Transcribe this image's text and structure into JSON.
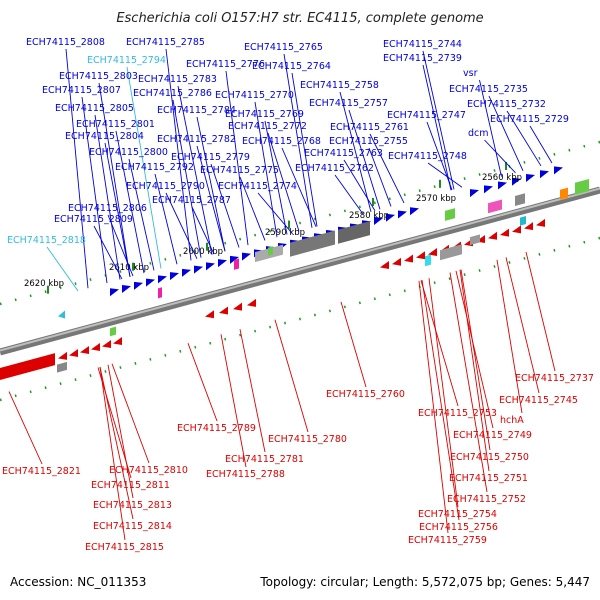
{
  "title": "Escherichia coli O157:H7 str. EC4115, complete genome",
  "footer": {
    "accession": "Accession: NC_011353",
    "summary": "Topology: circular; Length: 5,572,075 bp; Genes: 5,447"
  },
  "colors": {
    "forward": "#0000dd",
    "reverse": "#dd0000",
    "highlight": "#33bbdd",
    "backbone": "#777777"
  },
  "ticks": [
    "2560 kbp",
    "2570 kbp",
    "2580 kbp",
    "2590 kbp",
    "2600 kbp",
    "2610 kbp",
    "2620 kbp"
  ],
  "top_labels": [
    {
      "text": "ECH74115_2808",
      "color": "forward"
    },
    {
      "text": "ECH74115_2785",
      "color": "forward"
    },
    {
      "text": "ECH74115_2765",
      "color": "forward"
    },
    {
      "text": "ECH74115_2744",
      "color": "forward"
    },
    {
      "text": "ECH74115_2794",
      "color": "highlight"
    },
    {
      "text": "ECH74115_2776",
      "color": "forward"
    },
    {
      "text": "ECH74115_2764",
      "color": "forward"
    },
    {
      "text": "ECH74115_2739",
      "color": "forward"
    },
    {
      "text": "ECH74115_2803",
      "color": "forward"
    },
    {
      "text": "ECH74115_2783",
      "color": "forward"
    },
    {
      "text": "vsr",
      "color": "forward"
    },
    {
      "text": "ECH74115_2807",
      "color": "forward"
    },
    {
      "text": "ECH74115_2786",
      "color": "forward"
    },
    {
      "text": "ECH74115_2758",
      "color": "forward"
    },
    {
      "text": "ECH74115_2735",
      "color": "forward"
    },
    {
      "text": "ECH74115_2770",
      "color": "forward"
    },
    {
      "text": "ECH74115_2805",
      "color": "forward"
    },
    {
      "text": "ECH74115_2784",
      "color": "forward"
    },
    {
      "text": "ECH74115_2757",
      "color": "forward"
    },
    {
      "text": "ECH74115_2732",
      "color": "forward"
    },
    {
      "text": "ECH74115_2769",
      "color": "forward"
    },
    {
      "text": "ECH74115_2747",
      "color": "forward"
    },
    {
      "text": "ECH74115_2801",
      "color": "forward"
    },
    {
      "text": "ECH74115_2772",
      "color": "forward"
    },
    {
      "text": "ECH74115_2761",
      "color": "forward"
    },
    {
      "text": "ECH74115_2729",
      "color": "forward"
    },
    {
      "text": "ECH74115_2804",
      "color": "forward"
    },
    {
      "text": "ECH74115_2782",
      "color": "forward"
    },
    {
      "text": "dcm",
      "color": "forward"
    },
    {
      "text": "ECH74115_2768",
      "color": "forward"
    },
    {
      "text": "ECH74115_2755",
      "color": "forward"
    },
    {
      "text": "ECH74115_2800",
      "color": "forward"
    },
    {
      "text": "ECH74115_2779",
      "color": "forward"
    },
    {
      "text": "ECH74115_2763",
      "color": "forward"
    },
    {
      "text": "ECH74115_2748",
      "color": "forward"
    },
    {
      "text": "ECH74115_2792",
      "color": "forward"
    },
    {
      "text": "ECH74115_2775",
      "color": "forward"
    },
    {
      "text": "ECH74115_2762",
      "color": "forward"
    },
    {
      "text": "ECH74115_2790",
      "color": "forward"
    },
    {
      "text": "ECH74115_2774",
      "color": "forward"
    },
    {
      "text": "ECH74115_2787",
      "color": "forward"
    },
    {
      "text": "ECH74115_2806",
      "color": "forward"
    },
    {
      "text": "ECH74115_2809",
      "color": "forward"
    },
    {
      "text": "ECH74115_2818",
      "color": "highlight"
    }
  ],
  "bottom_labels": [
    {
      "text": "ECH74115_2760",
      "color": "reverse"
    },
    {
      "text": "ECH74115_2737",
      "color": "reverse"
    },
    {
      "text": "ECH74115_2745",
      "color": "reverse"
    },
    {
      "text": "ECH74115_2753",
      "color": "reverse"
    },
    {
      "text": "hchA",
      "color": "reverse"
    },
    {
      "text": "ECH74115_2789",
      "color": "reverse"
    },
    {
      "text": "ECH74115_2780",
      "color": "reverse"
    },
    {
      "text": "ECH74115_2749",
      "color": "reverse"
    },
    {
      "text": "ECH74115_2781",
      "color": "reverse"
    },
    {
      "text": "ECH74115_2750",
      "color": "reverse"
    },
    {
      "text": "ECH74115_2821",
      "color": "reverse"
    },
    {
      "text": "ECH74115_2810",
      "color": "reverse"
    },
    {
      "text": "ECH74115_2788",
      "color": "reverse"
    },
    {
      "text": "ECH74115_2751",
      "color": "reverse"
    },
    {
      "text": "ECH74115_2811",
      "color": "reverse"
    },
    {
      "text": "ECH74115_2752",
      "color": "reverse"
    },
    {
      "text": "ECH74115_2813",
      "color": "reverse"
    },
    {
      "text": "ECH74115_2754",
      "color": "reverse"
    },
    {
      "text": "ECH74115_2814",
      "color": "reverse"
    },
    {
      "text": "ECH74115_2756",
      "color": "reverse"
    },
    {
      "text": "ECH74115_2815",
      "color": "reverse"
    },
    {
      "text": "ECH74115_2759",
      "color": "reverse"
    }
  ]
}
